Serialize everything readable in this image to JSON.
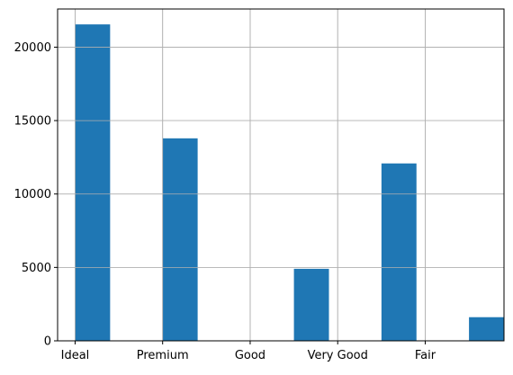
{
  "chart_data": {
    "type": "bar",
    "title": "",
    "xlabel": "",
    "ylabel": "",
    "categories": [
      "Ideal",
      "Premium",
      "Good",
      "Very Good",
      "Fair"
    ],
    "values": [
      21551,
      13791,
      4906,
      12082,
      1610
    ],
    "x_positions": [
      0.2,
      1.2,
      2.7,
      3.7,
      4.7
    ],
    "bar_width": 0.4,
    "xlim": [
      -0.2,
      4.9
    ],
    "ylim": [
      0,
      22600
    ],
    "yticks": [
      0,
      5000,
      10000,
      15000,
      20000
    ],
    "ytick_labels": [
      "0",
      "5000",
      "10000",
      "15000",
      "20000"
    ],
    "xticks": [
      0,
      1,
      2,
      3,
      4
    ],
    "xtick_labels": [
      "Ideal",
      "Premium",
      "Good",
      "Very Good",
      "Fair"
    ],
    "grid": true,
    "legend": "none",
    "colors": {
      "bar": "#1f77b4",
      "grid": "#b0b0b0",
      "axis": "#000000",
      "background": "#ffffff"
    }
  }
}
